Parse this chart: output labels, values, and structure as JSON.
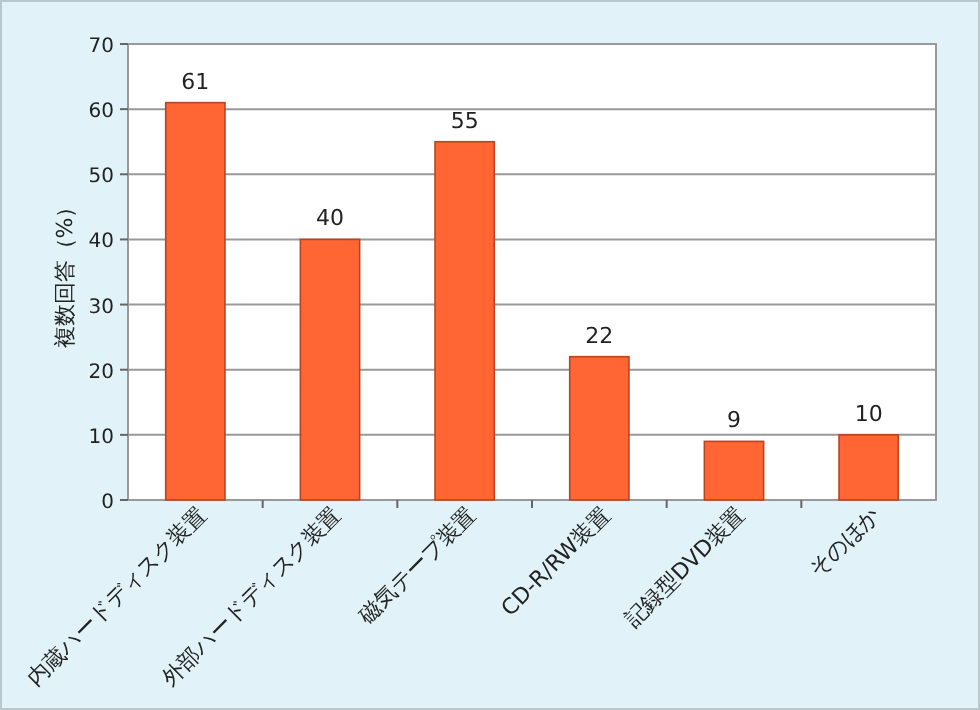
{
  "chart_data": {
    "type": "bar",
    "ylabel": "複数回答（%）",
    "categories": [
      "内蔵ハードディスク装置",
      "外部ハードディスク装置",
      "磁気テープ装置",
      "CD-R/RW装置",
      "記録型DVD装置",
      "そのほか"
    ],
    "values": [
      61,
      40,
      55,
      22,
      9,
      10
    ],
    "data_labels": true,
    "color": "#ff6633",
    "ylim": [
      0,
      70
    ],
    "yticks": [
      0,
      10,
      20,
      30,
      40,
      50,
      60,
      70
    ],
    "grid": "y"
  }
}
